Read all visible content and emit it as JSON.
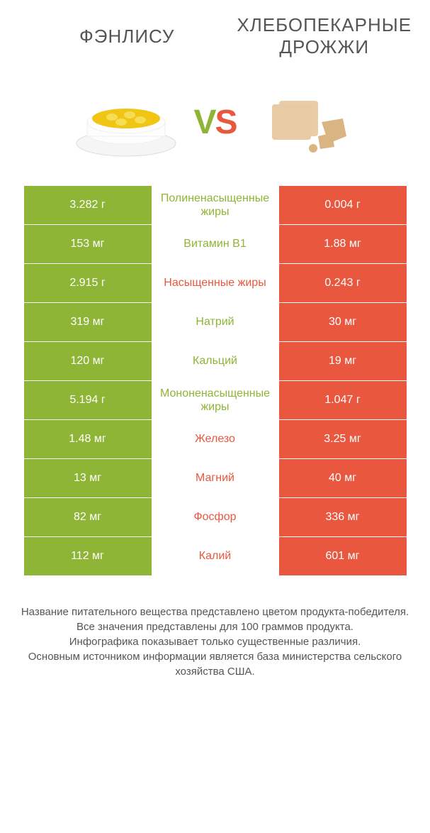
{
  "colors": {
    "green": "#8fb536",
    "orange": "#e9573f",
    "header_text": "#555555",
    "footnote_text": "#555555"
  },
  "header": {
    "left": "ФЭНЛИСУ",
    "right": "ХЛЕБОПЕКАРНЫЕ ДРОЖЖИ"
  },
  "vs": {
    "v": "V",
    "s": "S"
  },
  "rows": [
    {
      "left": "3.282 г",
      "label": "Полиненасыщенные жиры",
      "right": "0.004 г",
      "winner": "left"
    },
    {
      "left": "153 мг",
      "label": "Витамин B1",
      "right": "1.88 мг",
      "winner": "left"
    },
    {
      "left": "2.915 г",
      "label": "Насыщенные жиры",
      "right": "0.243 г",
      "winner": "right"
    },
    {
      "left": "319 мг",
      "label": "Натрий",
      "right": "30 мг",
      "winner": "left"
    },
    {
      "left": "120 мг",
      "label": "Кальций",
      "right": "19 мг",
      "winner": "left"
    },
    {
      "left": "5.194 г",
      "label": "Мононенасыщенные жиры",
      "right": "1.047 г",
      "winner": "left"
    },
    {
      "left": "1.48 мг",
      "label": "Железо",
      "right": "3.25 мг",
      "winner": "right"
    },
    {
      "left": "13 мг",
      "label": "Магний",
      "right": "40 мг",
      "winner": "right"
    },
    {
      "left": "82 мг",
      "label": "Фосфор",
      "right": "336 мг",
      "winner": "right"
    },
    {
      "left": "112 мг",
      "label": "Калий",
      "right": "601 мг",
      "winner": "right"
    }
  ],
  "footnote": [
    "Название питательного вещества представлено цветом продукта-победителя.",
    "Все значения представлены для 100 граммов продукта.",
    "Инфографика показывает только существенные различия.",
    "Основным источником информации является база министерства сельского хозяйства США."
  ]
}
